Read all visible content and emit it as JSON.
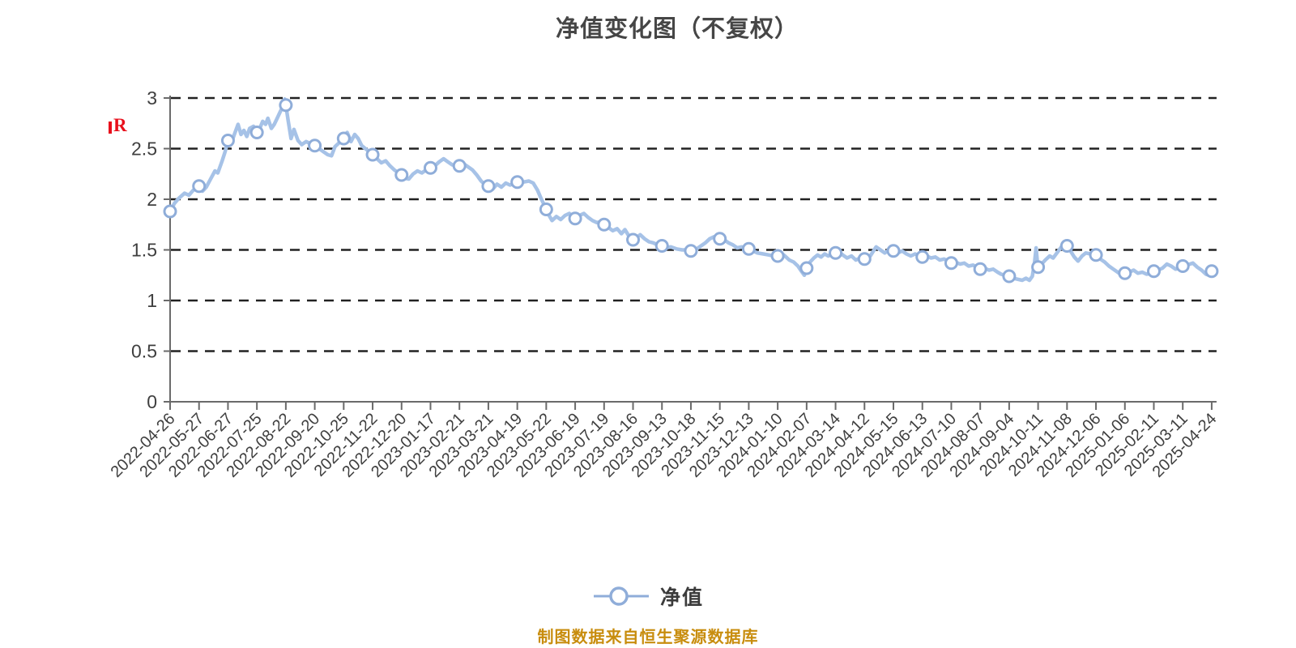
{
  "page": {
    "background": "#ffffff"
  },
  "chart": {
    "title": "净值变化图（不复权）",
    "series_name": "净值",
    "source_note": "制图数据来自恒生聚源数据库",
    "dividend_marker_label": "R"
  },
  "chart_data": {
    "type": "line",
    "title": "净值变化图（不复权）",
    "legend": [
      "净值"
    ],
    "legend_position": "bottom",
    "grid": "horizontal-dashed",
    "ylim": [
      0,
      3
    ],
    "yticks": [
      0,
      0.5,
      1,
      1.5,
      2,
      2.5,
      3
    ],
    "x_label_rotation": -45,
    "dates": [
      "2022-04-26",
      "2022-05-27",
      "2022-06-27",
      "2022-07-25",
      "2022-08-22",
      "2022-09-20",
      "2022-10-25",
      "2022-11-22",
      "2022-12-20",
      "2023-01-17",
      "2023-02-21",
      "2023-03-21",
      "2023-04-19",
      "2023-05-22",
      "2023-06-19",
      "2023-07-19",
      "2023-08-16",
      "2023-09-13",
      "2023-10-18",
      "2023-11-15",
      "2023-12-13",
      "2024-01-10",
      "2024-02-07",
      "2024-03-14",
      "2024-04-12",
      "2024-05-15",
      "2024-06-13",
      "2024-07-10",
      "2024-08-07",
      "2024-09-04",
      "2024-10-11",
      "2024-11-08",
      "2024-12-06",
      "2025-01-06",
      "2025-02-11",
      "2025-03-11",
      "2025-04-24"
    ],
    "values": [
      1.88,
      2.13,
      2.58,
      2.66,
      2.93,
      2.53,
      2.6,
      2.44,
      2.24,
      2.31,
      2.33,
      2.13,
      2.17,
      1.9,
      1.81,
      1.75,
      1.6,
      1.54,
      1.49,
      1.61,
      1.51,
      1.44,
      1.32,
      1.47,
      1.41,
      1.49,
      1.43,
      1.37,
      1.31,
      1.24,
      1.33,
      1.54,
      1.45,
      1.27,
      1.29,
      1.34,
      1.29
    ],
    "dense": [
      [
        0,
        1.88
      ],
      [
        0.15,
        1.96
      ],
      [
        0.3,
        2.01
      ],
      [
        0.5,
        2.06
      ],
      [
        0.65,
        2.04
      ],
      [
        0.8,
        2.09
      ],
      [
        1,
        2.13
      ],
      [
        1.12,
        2.08
      ],
      [
        1.25,
        2.12
      ],
      [
        1.4,
        2.2
      ],
      [
        1.55,
        2.28
      ],
      [
        1.65,
        2.26
      ],
      [
        1.8,
        2.38
      ],
      [
        1.9,
        2.47
      ],
      [
        2,
        2.58
      ],
      [
        2.1,
        2.54
      ],
      [
        2.22,
        2.64
      ],
      [
        2.35,
        2.74
      ],
      [
        2.45,
        2.64
      ],
      [
        2.55,
        2.68
      ],
      [
        2.65,
        2.62
      ],
      [
        2.75,
        2.7
      ],
      [
        2.88,
        2.72
      ],
      [
        3,
        2.66
      ],
      [
        3.1,
        2.7
      ],
      [
        3.2,
        2.77
      ],
      [
        3.3,
        2.74
      ],
      [
        3.38,
        2.8
      ],
      [
        3.5,
        2.7
      ],
      [
        3.6,
        2.74
      ],
      [
        3.7,
        2.8
      ],
      [
        3.8,
        2.86
      ],
      [
        3.9,
        2.92
      ],
      [
        3.96,
        2.99
      ],
      [
        4,
        2.93
      ],
      [
        4.08,
        2.78
      ],
      [
        4.18,
        2.6
      ],
      [
        4.28,
        2.69
      ],
      [
        4.42,
        2.58
      ],
      [
        4.55,
        2.54
      ],
      [
        4.7,
        2.57
      ],
      [
        4.85,
        2.55
      ],
      [
        5,
        2.53
      ],
      [
        5.15,
        2.5
      ],
      [
        5.3,
        2.47
      ],
      [
        5.45,
        2.44
      ],
      [
        5.58,
        2.43
      ],
      [
        5.7,
        2.52
      ],
      [
        5.85,
        2.56
      ],
      [
        6,
        2.6
      ],
      [
        6.12,
        2.66
      ],
      [
        6.25,
        2.57
      ],
      [
        6.38,
        2.64
      ],
      [
        6.5,
        2.6
      ],
      [
        6.62,
        2.53
      ],
      [
        6.75,
        2.5
      ],
      [
        6.88,
        2.47
      ],
      [
        7,
        2.44
      ],
      [
        7.15,
        2.4
      ],
      [
        7.3,
        2.36
      ],
      [
        7.45,
        2.38
      ],
      [
        7.6,
        2.33
      ],
      [
        7.75,
        2.29
      ],
      [
        7.9,
        2.26
      ],
      [
        8,
        2.24
      ],
      [
        8.1,
        2.21
      ],
      [
        8.25,
        2.2
      ],
      [
        8.4,
        2.25
      ],
      [
        8.55,
        2.28
      ],
      [
        8.7,
        2.26
      ],
      [
        8.85,
        2.29
      ],
      [
        9,
        2.31
      ],
      [
        9.15,
        2.33
      ],
      [
        9.3,
        2.37
      ],
      [
        9.45,
        2.4
      ],
      [
        9.6,
        2.37
      ],
      [
        9.75,
        2.34
      ],
      [
        9.9,
        2.33
      ],
      [
        10,
        2.33
      ],
      [
        10.15,
        2.35
      ],
      [
        10.3,
        2.32
      ],
      [
        10.45,
        2.29
      ],
      [
        10.6,
        2.24
      ],
      [
        10.75,
        2.18
      ],
      [
        10.9,
        2.14
      ],
      [
        11,
        2.13
      ],
      [
        11.15,
        2.1
      ],
      [
        11.3,
        2.15
      ],
      [
        11.45,
        2.12
      ],
      [
        11.6,
        2.16
      ],
      [
        11.75,
        2.14
      ],
      [
        11.9,
        2.16
      ],
      [
        12,
        2.17
      ],
      [
        12.2,
        2.17
      ],
      [
        12.4,
        2.18
      ],
      [
        12.55,
        2.16
      ],
      [
        12.7,
        2.09
      ],
      [
        12.82,
        2.01
      ],
      [
        12.92,
        1.95
      ],
      [
        13,
        1.9
      ],
      [
        13.1,
        1.84
      ],
      [
        13.2,
        1.79
      ],
      [
        13.35,
        1.83
      ],
      [
        13.5,
        1.8
      ],
      [
        13.65,
        1.84
      ],
      [
        13.8,
        1.86
      ],
      [
        13.9,
        1.83
      ],
      [
        14,
        1.81
      ],
      [
        14.15,
        1.84
      ],
      [
        14.3,
        1.86
      ],
      [
        14.45,
        1.82
      ],
      [
        14.6,
        1.79
      ],
      [
        14.75,
        1.77
      ],
      [
        14.9,
        1.78
      ],
      [
        15,
        1.75
      ],
      [
        15.15,
        1.72
      ],
      [
        15.3,
        1.69
      ],
      [
        15.45,
        1.71
      ],
      [
        15.6,
        1.66
      ],
      [
        15.72,
        1.7
      ],
      [
        15.85,
        1.64
      ],
      [
        16,
        1.6
      ],
      [
        16.12,
        1.62
      ],
      [
        16.25,
        1.65
      ],
      [
        16.4,
        1.61
      ],
      [
        16.55,
        1.58
      ],
      [
        16.7,
        1.57
      ],
      [
        16.85,
        1.55
      ],
      [
        17,
        1.54
      ],
      [
        17.15,
        1.52
      ],
      [
        17.3,
        1.53
      ],
      [
        17.5,
        1.51
      ],
      [
        17.7,
        1.5
      ],
      [
        17.85,
        1.5
      ],
      [
        18,
        1.49
      ],
      [
        18.2,
        1.51
      ],
      [
        18.35,
        1.54
      ],
      [
        18.5,
        1.57
      ],
      [
        18.65,
        1.61
      ],
      [
        18.8,
        1.63
      ],
      [
        19,
        1.61
      ],
      [
        19.15,
        1.6
      ],
      [
        19.3,
        1.57
      ],
      [
        19.45,
        1.55
      ],
      [
        19.6,
        1.52
      ],
      [
        19.75,
        1.53
      ],
      [
        19.9,
        1.52
      ],
      [
        20,
        1.51
      ],
      [
        20.15,
        1.49
      ],
      [
        20.3,
        1.47
      ],
      [
        20.5,
        1.46
      ],
      [
        20.7,
        1.45
      ],
      [
        20.85,
        1.44
      ],
      [
        21,
        1.44
      ],
      [
        21.12,
        1.47
      ],
      [
        21.25,
        1.44
      ],
      [
        21.4,
        1.4
      ],
      [
        21.55,
        1.38
      ],
      [
        21.7,
        1.34
      ],
      [
        21.82,
        1.29
      ],
      [
        21.92,
        1.25
      ],
      [
        22,
        1.32
      ],
      [
        22.12,
        1.38
      ],
      [
        22.25,
        1.42
      ],
      [
        22.38,
        1.45
      ],
      [
        22.5,
        1.43
      ],
      [
        22.62,
        1.46
      ],
      [
        22.75,
        1.44
      ],
      [
        22.88,
        1.46
      ],
      [
        23,
        1.47
      ],
      [
        23.12,
        1.48
      ],
      [
        23.25,
        1.45
      ],
      [
        23.4,
        1.42
      ],
      [
        23.55,
        1.44
      ],
      [
        23.7,
        1.4
      ],
      [
        23.85,
        1.42
      ],
      [
        24,
        1.41
      ],
      [
        24.2,
        1.44
      ],
      [
        24.4,
        1.53
      ],
      [
        24.55,
        1.5
      ],
      [
        24.7,
        1.47
      ],
      [
        24.85,
        1.5
      ],
      [
        25,
        1.49
      ],
      [
        25.15,
        1.47
      ],
      [
        25.3,
        1.49
      ],
      [
        25.45,
        1.46
      ],
      [
        25.6,
        1.44
      ],
      [
        25.75,
        1.46
      ],
      [
        25.9,
        1.44
      ],
      [
        26,
        1.43
      ],
      [
        26.15,
        1.44
      ],
      [
        26.3,
        1.42
      ],
      [
        26.45,
        1.43
      ],
      [
        26.6,
        1.4
      ],
      [
        26.75,
        1.41
      ],
      [
        26.9,
        1.39
      ],
      [
        27,
        1.37
      ],
      [
        27.15,
        1.38
      ],
      [
        27.3,
        1.36
      ],
      [
        27.45,
        1.37
      ],
      [
        27.6,
        1.34
      ],
      [
        27.75,
        1.35
      ],
      [
        27.9,
        1.33
      ],
      [
        28,
        1.31
      ],
      [
        28.15,
        1.32
      ],
      [
        28.3,
        1.3
      ],
      [
        28.45,
        1.31
      ],
      [
        28.6,
        1.28
      ],
      [
        28.72,
        1.26
      ],
      [
        28.85,
        1.25
      ],
      [
        29,
        1.24
      ],
      [
        29.15,
        1.22
      ],
      [
        29.3,
        1.21
      ],
      [
        29.45,
        1.2
      ],
      [
        29.58,
        1.22
      ],
      [
        29.7,
        1.2
      ],
      [
        29.8,
        1.24
      ],
      [
        29.88,
        1.38
      ],
      [
        29.93,
        1.52
      ],
      [
        29.97,
        1.4
      ],
      [
        30,
        1.33
      ],
      [
        30.12,
        1.36
      ],
      [
        30.25,
        1.4
      ],
      [
        30.4,
        1.44
      ],
      [
        30.52,
        1.42
      ],
      [
        30.65,
        1.47
      ],
      [
        30.78,
        1.52
      ],
      [
        30.9,
        1.57
      ],
      [
        31,
        1.54
      ],
      [
        31.12,
        1.49
      ],
      [
        31.25,
        1.43
      ],
      [
        31.38,
        1.39
      ],
      [
        31.52,
        1.44
      ],
      [
        31.65,
        1.47
      ],
      [
        31.82,
        1.46
      ],
      [
        32,
        1.45
      ],
      [
        32.15,
        1.41
      ],
      [
        32.3,
        1.38
      ],
      [
        32.45,
        1.34
      ],
      [
        32.6,
        1.31
      ],
      [
        32.75,
        1.28
      ],
      [
        32.9,
        1.25
      ],
      [
        33,
        1.27
      ],
      [
        33.15,
        1.28
      ],
      [
        33.3,
        1.3
      ],
      [
        33.45,
        1.27
      ],
      [
        33.6,
        1.28
      ],
      [
        33.75,
        1.26
      ],
      [
        33.9,
        1.27
      ],
      [
        34,
        1.29
      ],
      [
        34.15,
        1.3
      ],
      [
        34.3,
        1.32
      ],
      [
        34.45,
        1.36
      ],
      [
        34.6,
        1.34
      ],
      [
        34.75,
        1.31
      ],
      [
        34.9,
        1.32
      ],
      [
        35,
        1.34
      ],
      [
        35.15,
        1.35
      ],
      [
        35.35,
        1.37
      ],
      [
        35.5,
        1.33
      ],
      [
        35.65,
        1.3
      ],
      [
        35.8,
        1.26
      ],
      [
        35.9,
        1.25
      ],
      [
        36,
        1.29
      ]
    ],
    "annotations": [
      {
        "label": "R",
        "color": "#e8101c",
        "y_value": 2.7,
        "position": "left-of-y-axis"
      }
    ],
    "colors": {
      "line": "#a6c2e7",
      "marker_fill": "#ffffff",
      "marker_stroke": "#8fadd9",
      "gridline": "#222222",
      "axis": "#6a6a6a",
      "tick_label": "#3f3f3f",
      "title": "#464646",
      "source_note": "#c88d0e",
      "dividend_marker": "#e8101c"
    }
  }
}
